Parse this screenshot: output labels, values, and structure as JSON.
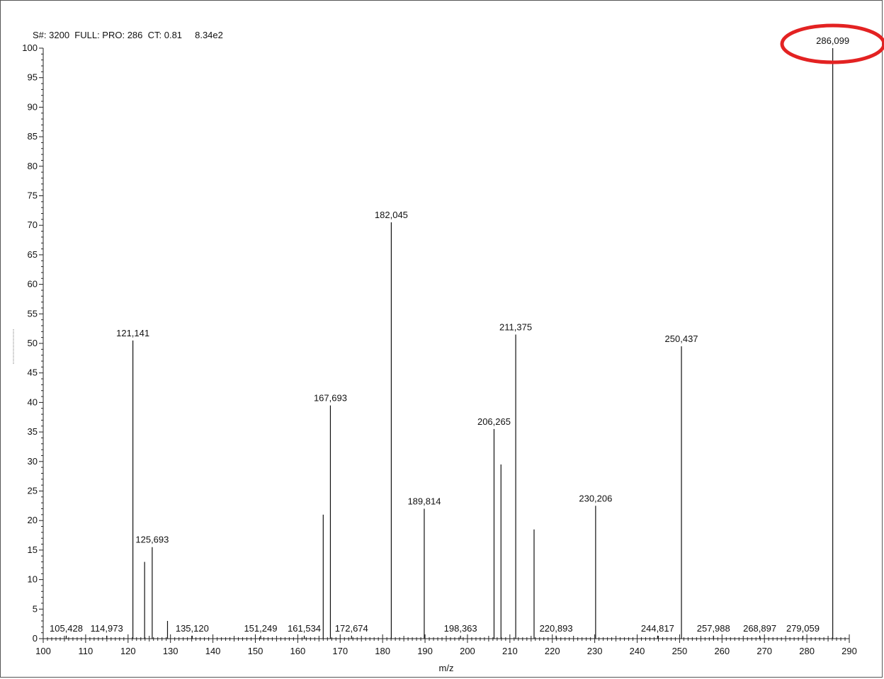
{
  "header": {
    "scan": "S#: 3200",
    "filter": "FULL: PRO: 286",
    "ct": "CT: 0.81",
    "base_intensity": "8.34e2"
  },
  "highlight": {
    "color": "#e32222",
    "target_label": "286,099"
  },
  "chart_data": {
    "type": "bar",
    "title": "",
    "xlabel": "m/z",
    "ylabel": "",
    "xlim": [
      100,
      290
    ],
    "ylim": [
      0,
      100
    ],
    "x_ticks": [
      100,
      110,
      120,
      130,
      140,
      150,
      160,
      170,
      180,
      190,
      200,
      210,
      220,
      230,
      240,
      250,
      260,
      270,
      280,
      290
    ],
    "y_ticks": [
      0,
      5,
      10,
      15,
      20,
      25,
      30,
      35,
      40,
      45,
      50,
      55,
      60,
      65,
      70,
      75,
      80,
      85,
      90,
      95,
      100
    ],
    "peaks": [
      {
        "mz": 105.428,
        "intensity": 0.5,
        "label": "105,428"
      },
      {
        "mz": 114.973,
        "intensity": 0.5,
        "label": "114,973"
      },
      {
        "mz": 121.141,
        "intensity": 50.5,
        "label": "121,141"
      },
      {
        "mz": 123.9,
        "intensity": 13,
        "label": ""
      },
      {
        "mz": 125.693,
        "intensity": 15.5,
        "label": "125,693"
      },
      {
        "mz": 129.3,
        "intensity": 3,
        "label": ""
      },
      {
        "mz": 135.12,
        "intensity": 0.5,
        "label": "135,120"
      },
      {
        "mz": 151.249,
        "intensity": 0.5,
        "label": "151,249"
      },
      {
        "mz": 161.534,
        "intensity": 0.5,
        "label": "161,534"
      },
      {
        "mz": 166.0,
        "intensity": 21,
        "label": ""
      },
      {
        "mz": 167.693,
        "intensity": 39.5,
        "label": "167,693"
      },
      {
        "mz": 172.674,
        "intensity": 0.5,
        "label": "172,674"
      },
      {
        "mz": 182.045,
        "intensity": 70.5,
        "label": "182,045"
      },
      {
        "mz": 189.814,
        "intensity": 22,
        "label": "189,814"
      },
      {
        "mz": 198.363,
        "intensity": 0.5,
        "label": "198,363"
      },
      {
        "mz": 206.265,
        "intensity": 35.5,
        "label": "206,265"
      },
      {
        "mz": 207.9,
        "intensity": 29.5,
        "label": ""
      },
      {
        "mz": 211.375,
        "intensity": 51.5,
        "label": "211,375"
      },
      {
        "mz": 215.7,
        "intensity": 18.5,
        "label": ""
      },
      {
        "mz": 220.893,
        "intensity": 0.5,
        "label": "220,893"
      },
      {
        "mz": 230.206,
        "intensity": 22.5,
        "label": "230,206"
      },
      {
        "mz": 244.817,
        "intensity": 0.5,
        "label": "244,817"
      },
      {
        "mz": 250.437,
        "intensity": 49.5,
        "label": "250,437"
      },
      {
        "mz": 257.988,
        "intensity": 0.5,
        "label": "257,988"
      },
      {
        "mz": 268.897,
        "intensity": 0.5,
        "label": "268,897"
      },
      {
        "mz": 279.059,
        "intensity": 0.5,
        "label": "279,059"
      },
      {
        "mz": 286.099,
        "intensity": 100,
        "label": "286,099"
      }
    ]
  }
}
